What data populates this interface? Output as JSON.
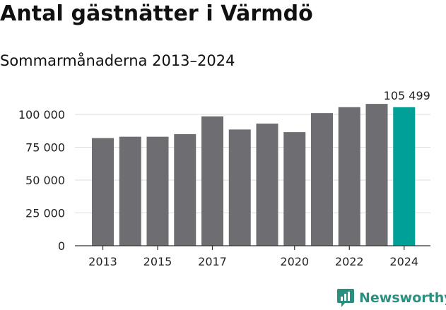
{
  "header": {
    "title": "Antal gästnätter i Värmdö",
    "subtitle": "Sommarmånaderna 2013–2024"
  },
  "brand": {
    "name": "Newsworthy",
    "icon": "chat-bar-chart-icon",
    "color": "#2a8f7f"
  },
  "chart_data": {
    "type": "bar",
    "title": "Antal gästnätter i Värmdö",
    "subtitle": "Sommarmånaderna 2013–2024",
    "categories": [
      "2013",
      "2014",
      "2015",
      "2016",
      "2017",
      "2018",
      "2019",
      "2020",
      "2021",
      "2022",
      "2023",
      "2024"
    ],
    "values": [
      82000,
      83000,
      83000,
      85000,
      98500,
      88500,
      93000,
      86500,
      101000,
      105500,
      108000,
      105499
    ],
    "x_tick_labels": [
      "2013",
      "2015",
      "2017",
      "2020",
      "2022",
      "2024"
    ],
    "y_ticks": [
      0,
      25000,
      50000,
      75000,
      100000
    ],
    "y_tick_labels": [
      "0",
      "25 000",
      "50 000",
      "75 000",
      "100 000"
    ],
    "ylim": [
      0,
      100000
    ],
    "xlabel": "",
    "ylabel": "",
    "grid": true,
    "highlight_category": "2024",
    "highlight_label": "105 499",
    "colors": {
      "bar": "#6e6d72",
      "highlight": "#00a096",
      "grid": "#dddddd",
      "axis": "#333333"
    }
  }
}
